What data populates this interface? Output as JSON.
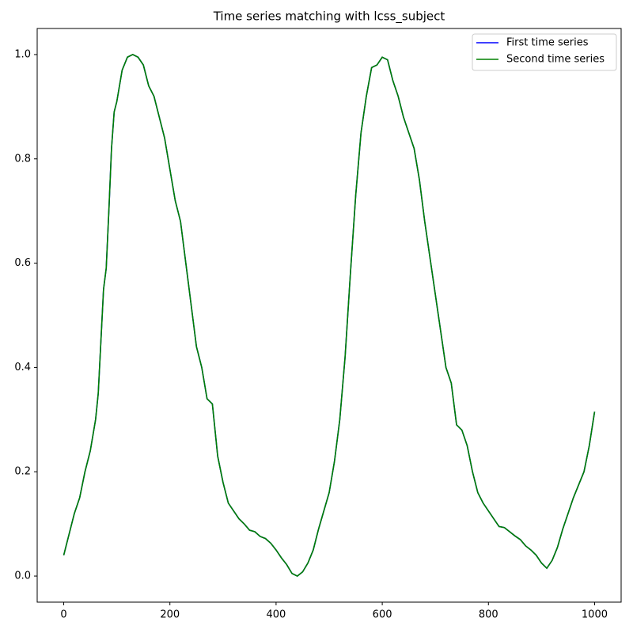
{
  "chart_data": {
    "type": "line",
    "title": "Time series matching with lcss_subject",
    "x": [
      0,
      10,
      20,
      30,
      40,
      50,
      60,
      65,
      70,
      75,
      80,
      85,
      90,
      95,
      100,
      110,
      120,
      130,
      140,
      150,
      160,
      170,
      180,
      190,
      200,
      210,
      220,
      230,
      240,
      250,
      260,
      270,
      280,
      290,
      300,
      310,
      320,
      330,
      340,
      350,
      360,
      370,
      380,
      390,
      400,
      410,
      420,
      430,
      440,
      450,
      460,
      470,
      480,
      490,
      500,
      510,
      520,
      530,
      540,
      550,
      560,
      570,
      580,
      590,
      600,
      610,
      620,
      630,
      640,
      650,
      660,
      670,
      680,
      690,
      700,
      710,
      720,
      730,
      740,
      750,
      760,
      770,
      780,
      790,
      800,
      810,
      820,
      830,
      840,
      850,
      860,
      870,
      880,
      890,
      900,
      910,
      920,
      930,
      940,
      950,
      960,
      970,
      980,
      990,
      1000
    ],
    "series": [
      {
        "name": "First time series",
        "color": "#0000ff",
        "values": [
          0.04,
          0.08,
          0.12,
          0.15,
          0.2,
          0.24,
          0.3,
          0.35,
          0.45,
          0.55,
          0.59,
          0.7,
          0.82,
          0.89,
          0.91,
          0.97,
          0.995,
          1.0,
          0.995,
          0.98,
          0.94,
          0.92,
          0.88,
          0.84,
          0.78,
          0.72,
          0.68,
          0.6,
          0.52,
          0.44,
          0.4,
          0.34,
          0.33,
          0.23,
          0.18,
          0.14,
          0.125,
          0.11,
          0.1,
          0.088,
          0.085,
          0.076,
          0.072,
          0.063,
          0.05,
          0.035,
          0.022,
          0.005,
          0.0,
          0.008,
          0.025,
          0.05,
          0.09,
          0.125,
          0.16,
          0.22,
          0.3,
          0.42,
          0.58,
          0.73,
          0.85,
          0.92,
          0.975,
          0.98,
          0.995,
          0.99,
          0.95,
          0.92,
          0.88,
          0.85,
          0.82,
          0.76,
          0.68,
          0.61,
          0.54,
          0.47,
          0.4,
          0.37,
          0.29,
          0.28,
          0.25,
          0.2,
          0.16,
          0.14,
          0.125,
          0.11,
          0.095,
          0.093,
          0.085,
          0.077,
          0.07,
          0.058,
          0.05,
          0.04,
          0.025,
          0.015,
          0.03,
          0.055,
          0.09,
          0.12,
          0.15,
          0.175,
          0.2,
          0.25,
          0.315
        ]
      },
      {
        "name": "Second time series",
        "color": "#008000",
        "values": [
          0.04,
          0.08,
          0.12,
          0.15,
          0.2,
          0.24,
          0.3,
          0.35,
          0.45,
          0.55,
          0.59,
          0.7,
          0.82,
          0.89,
          0.91,
          0.97,
          0.995,
          1.0,
          0.995,
          0.98,
          0.94,
          0.92,
          0.88,
          0.84,
          0.78,
          0.72,
          0.68,
          0.6,
          0.52,
          0.44,
          0.4,
          0.34,
          0.33,
          0.23,
          0.18,
          0.14,
          0.125,
          0.11,
          0.1,
          0.088,
          0.085,
          0.076,
          0.072,
          0.063,
          0.05,
          0.035,
          0.022,
          0.005,
          0.0,
          0.008,
          0.025,
          0.05,
          0.09,
          0.125,
          0.16,
          0.22,
          0.3,
          0.42,
          0.58,
          0.73,
          0.85,
          0.92,
          0.975,
          0.98,
          0.995,
          0.99,
          0.95,
          0.92,
          0.88,
          0.85,
          0.82,
          0.76,
          0.68,
          0.61,
          0.54,
          0.47,
          0.4,
          0.37,
          0.29,
          0.28,
          0.25,
          0.2,
          0.16,
          0.14,
          0.125,
          0.11,
          0.095,
          0.093,
          0.085,
          0.077,
          0.07,
          0.058,
          0.05,
          0.04,
          0.025,
          0.015,
          0.03,
          0.055,
          0.09,
          0.12,
          0.15,
          0.175,
          0.2,
          0.25,
          0.315
        ]
      }
    ],
    "xlim": [
      -50,
      1050
    ],
    "ylim": [
      -0.05,
      1.05
    ],
    "xticks": [
      0,
      200,
      400,
      600,
      800,
      1000
    ],
    "yticks": [
      {
        "value": 0,
        "label": "0.0"
      },
      0.2,
      0.4,
      0.6,
      0.8,
      {
        "value": 1,
        "label": "1.0"
      }
    ],
    "legend": "upper right",
    "grid": false
  }
}
